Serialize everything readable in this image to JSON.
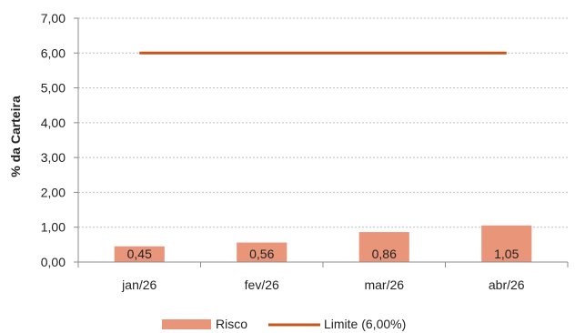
{
  "chart_data": {
    "type": "bar",
    "categories": [
      "jan/26",
      "fev/26",
      "mar/26",
      "abr/26"
    ],
    "series": [
      {
        "name": "Risco",
        "type": "bar",
        "values": [
          0.45,
          0.56,
          0.86,
          1.05
        ],
        "value_labels": [
          "0,45",
          "0,56",
          "0,86",
          "1,05"
        ],
        "color": "#E8957A"
      },
      {
        "name": "Limite (6,00%)",
        "type": "line",
        "values": [
          6.0,
          6.0,
          6.0,
          6.0
        ],
        "color": "#C8541A"
      }
    ],
    "ylabel": "% da Carteira",
    "ylim": [
      0,
      7
    ],
    "yticks": [
      0,
      1,
      2,
      3,
      4,
      5,
      6,
      7
    ],
    "ytick_labels": [
      "0,00",
      "1,00",
      "2,00",
      "3,00",
      "4,00",
      "5,00",
      "6,00",
      "7,00"
    ],
    "grid": true,
    "legend_position": "bottom"
  }
}
